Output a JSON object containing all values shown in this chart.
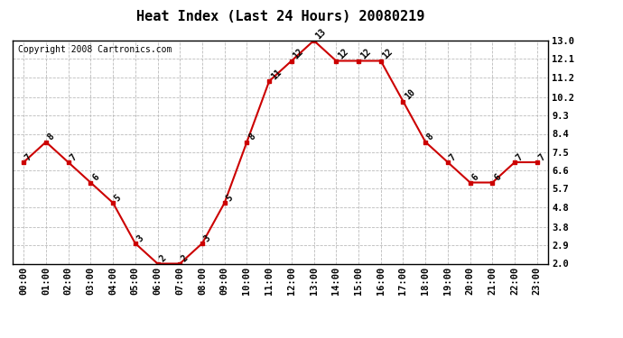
{
  "title": "Heat Index (Last 24 Hours) 20080219",
  "copyright": "Copyright 2008 Cartronics.com",
  "hours": [
    "00:00",
    "01:00",
    "02:00",
    "03:00",
    "04:00",
    "05:00",
    "06:00",
    "07:00",
    "08:00",
    "09:00",
    "10:00",
    "11:00",
    "12:00",
    "13:00",
    "14:00",
    "15:00",
    "16:00",
    "17:00",
    "18:00",
    "19:00",
    "20:00",
    "21:00",
    "22:00",
    "23:00"
  ],
  "values": [
    7,
    8,
    7,
    6,
    5,
    3,
    2,
    2,
    3,
    5,
    8,
    11,
    12,
    13,
    12,
    12,
    12,
    10,
    8,
    7,
    6,
    6,
    7,
    7
  ],
  "ylim": [
    2.0,
    13.0
  ],
  "yticks": [
    2.0,
    2.9,
    3.8,
    4.8,
    5.7,
    6.6,
    7.5,
    8.4,
    9.3,
    10.2,
    11.2,
    12.1,
    13.0
  ],
  "line_color": "#cc0000",
  "marker_color": "#cc0000",
  "bg_color": "#ffffff",
  "plot_bg_color": "#ffffff",
  "grid_color": "#bbbbbb",
  "title_fontsize": 11,
  "label_fontsize": 7,
  "copyright_fontsize": 7,
  "tick_fontsize": 7.5
}
